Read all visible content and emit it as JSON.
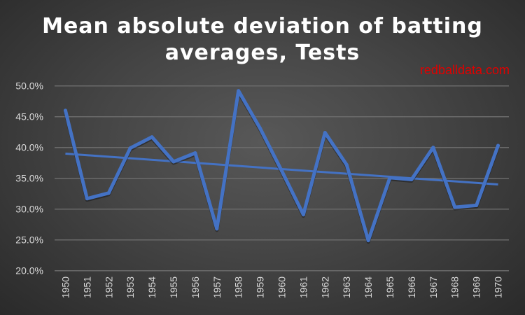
{
  "chart_data": {
    "type": "line",
    "title_line1": "Mean absolute deviation of batting",
    "title_line2": "averages, Tests",
    "watermark": "redballdata.com",
    "categories": [
      "1950",
      "1951",
      "1952",
      "1953",
      "1954",
      "1955",
      "1956",
      "1957",
      "1958",
      "1959",
      "1960",
      "1961",
      "1962",
      "1963",
      "1964",
      "1965",
      "1966",
      "1967",
      "1968",
      "1969",
      "1970"
    ],
    "series": [
      {
        "name": "Mean absolute deviation",
        "values": [
          46.0,
          31.7,
          32.6,
          39.9,
          41.7,
          37.7,
          39.1,
          26.8,
          49.2,
          43.1,
          36.2,
          29.1,
          42.4,
          37.2,
          24.9,
          35.1,
          34.8,
          40.0,
          30.3,
          30.6,
          40.3
        ],
        "color": "#4472C4"
      },
      {
        "name": "Linear trend",
        "values_start_end": [
          39.0,
          34.0
        ],
        "color": "#4472C4"
      }
    ],
    "yticks": [
      "20.0%",
      "25.0%",
      "30.0%",
      "35.0%",
      "40.0%",
      "45.0%",
      "50.0%"
    ],
    "ylim": [
      20,
      50
    ],
    "grid": true,
    "legend": "none"
  }
}
